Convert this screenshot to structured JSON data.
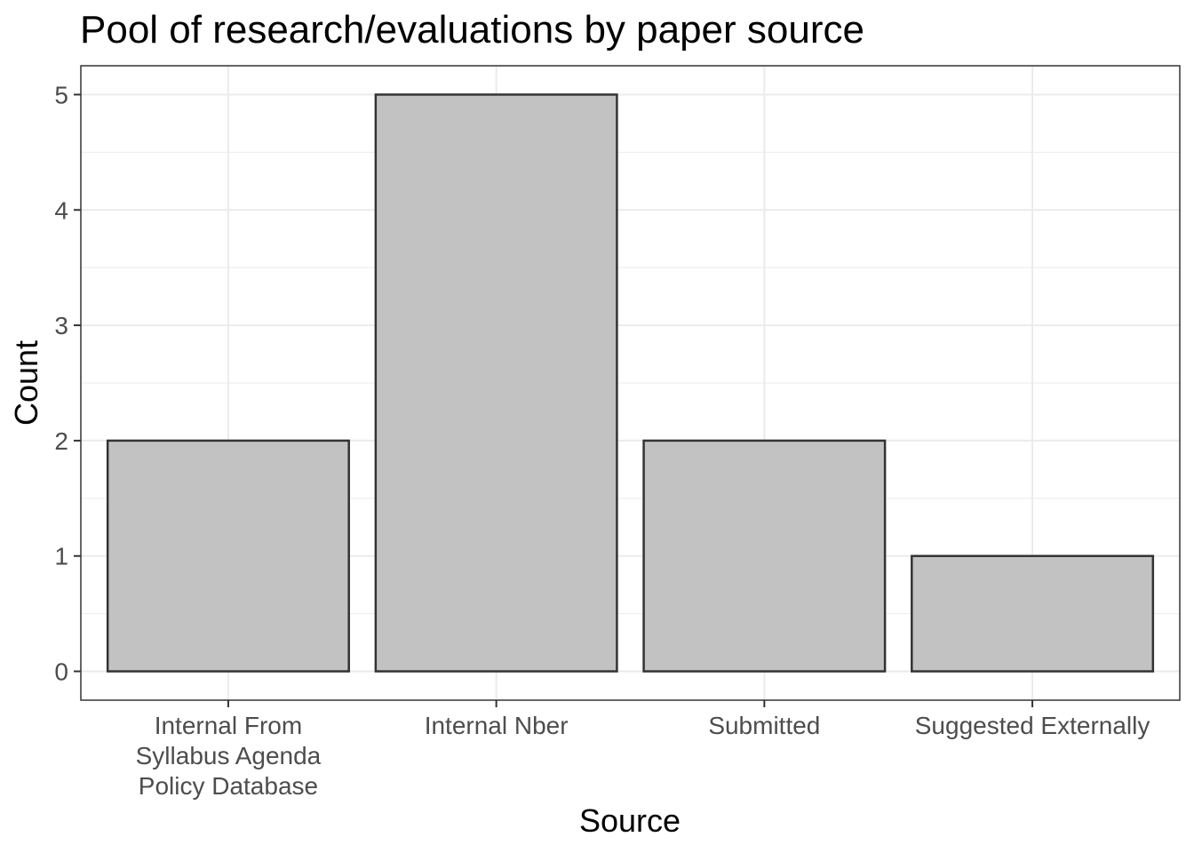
{
  "chart_data": {
    "type": "bar",
    "title": "Pool of research/evaluations by paper source",
    "xlabel": "Source",
    "ylabel": "Count",
    "categories": [
      [
        "Internal From",
        "Syllabus Agenda",
        "Policy Database"
      ],
      [
        "Internal Nber"
      ],
      [
        "Submitted"
      ],
      [
        "Suggested Externally"
      ]
    ],
    "values": [
      2,
      5,
      2,
      1
    ],
    "ylim": [
      -0.25,
      5.25
    ],
    "yticks": [
      0,
      1,
      2,
      3,
      4,
      5
    ],
    "grid": true,
    "colors": {
      "bar_fill": "#c2c2c2",
      "bar_stroke": "#333333",
      "grid": "#ebebeb",
      "panel_border": "#333333",
      "tick": "#333333"
    }
  }
}
